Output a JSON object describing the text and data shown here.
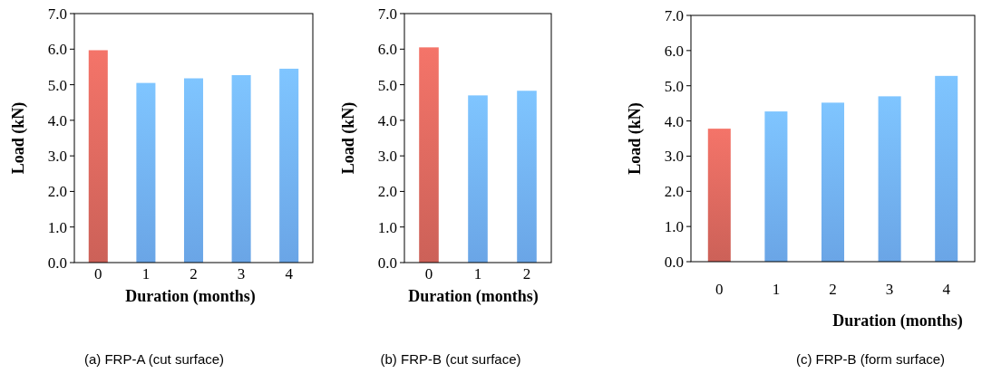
{
  "chart_data": [
    {
      "type": "bar",
      "categories": [
        "0",
        "1",
        "2",
        "3",
        "4"
      ],
      "values": [
        5.97,
        5.05,
        5.18,
        5.27,
        5.45
      ],
      "colors": [
        "#cc6158",
        "#6aa5e6",
        "#6aa5e6",
        "#6aa5e6",
        "#6aa5e6"
      ],
      "ylim": [
        0,
        7
      ],
      "yticks": [
        {
          "value": 0,
          "label": "0.0"
        },
        {
          "value": 1,
          "label": "1.0"
        },
        {
          "value": 2,
          "label": "2.0"
        },
        {
          "value": 3,
          "label": "3.0"
        },
        {
          "value": 4,
          "label": "4.0"
        },
        {
          "value": 5,
          "label": "5.0"
        },
        {
          "value": 6,
          "label": "6.0"
        },
        {
          "value": 7,
          "label": "7.0"
        }
      ],
      "xlabel": "Duration (months)",
      "ylabel": "Load (kN)",
      "grid": false,
      "annotations": [
        "(a)   FRP-A (cut surface)"
      ]
    },
    {
      "type": "bar",
      "categories": [
        "0",
        "1",
        "2"
      ],
      "values": [
        6.05,
        4.7,
        4.83
      ],
      "colors": [
        "#cc6158",
        "#6aa5e6",
        "#6aa5e6"
      ],
      "ylim": [
        0,
        7
      ],
      "yticks": [
        {
          "value": 0,
          "label": "0.0"
        },
        {
          "value": 1,
          "label": "1.0"
        },
        {
          "value": 2,
          "label": "2.0"
        },
        {
          "value": 3,
          "label": "3.0"
        },
        {
          "value": 4,
          "label": "4.0"
        },
        {
          "value": 5,
          "label": "5.0"
        },
        {
          "value": 6,
          "label": "6.0"
        },
        {
          "value": 7,
          "label": "7.0"
        }
      ],
      "xlabel": "Duration (months)",
      "ylabel": "Load (kN)",
      "grid": false,
      "annotations": [
        "(b) FRP-B (cut surface)"
      ]
    },
    {
      "type": "bar",
      "categories": [
        "0",
        "1",
        "2",
        "3",
        "4"
      ],
      "values": [
        3.78,
        4.27,
        4.52,
        4.7,
        5.28
      ],
      "colors": [
        "#cc6158",
        "#6aa5e6",
        "#6aa5e6",
        "#6aa5e6",
        "#6aa5e6"
      ],
      "ylim": [
        0,
        7
      ],
      "yticks": [
        {
          "value": 0,
          "label": "0.0"
        },
        {
          "value": 1,
          "label": "1.0"
        },
        {
          "value": 2,
          "label": "2.0"
        },
        {
          "value": 3,
          "label": "3.0"
        },
        {
          "value": 4,
          "label": "4.0"
        },
        {
          "value": 5,
          "label": "5.0"
        },
        {
          "value": 6,
          "label": "6.0"
        },
        {
          "value": 7,
          "label": "7.0"
        }
      ],
      "xlabel": "Duration (months)",
      "ylabel": "Load (kN)",
      "grid": false,
      "annotations": [
        "(c) FRP-B (form surface)"
      ]
    }
  ]
}
